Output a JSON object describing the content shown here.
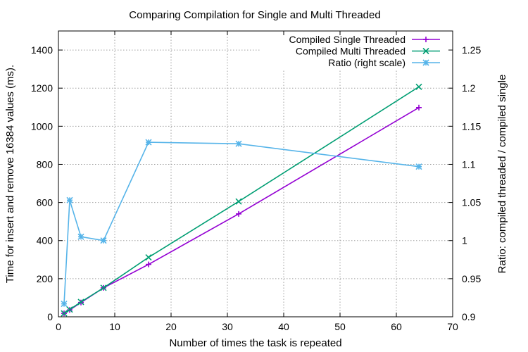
{
  "chart_data": {
    "type": "line",
    "title": "Comparing Compilation for Single and Multi Threaded",
    "xlabel": "Number of times the task is repeated",
    "ylabel": "Time for insert and remove 16384 values (ms).",
    "y2label": "Ratio: compiled threaded / compiled single",
    "xlim": [
      0,
      70
    ],
    "ylim": [
      0,
      1500
    ],
    "y2lim": [
      0.9,
      1.275
    ],
    "xticks": [
      "0",
      "10",
      "20",
      "30",
      "40",
      "50",
      "60",
      "70"
    ],
    "yticks": [
      "0",
      "200",
      "400",
      "600",
      "800",
      "1000",
      "1200",
      "1400"
    ],
    "y2ticks": [
      "0.9",
      "0.95",
      "1",
      "1.05",
      "1.1",
      "1.15",
      "1.2",
      "1.25"
    ],
    "grid": true,
    "legend_position": "top-right",
    "series": [
      {
        "name": "Compiled Single Threaded",
        "axis": "left",
        "color": "#9400d3",
        "marker": "plus",
        "points": [
          [
            1,
            18
          ],
          [
            2,
            36
          ],
          [
            4,
            75
          ],
          [
            8,
            152
          ],
          [
            16,
            275
          ],
          [
            32,
            540
          ],
          [
            64,
            1098
          ]
        ]
      },
      {
        "name": "Compiled Multi Threaded",
        "axis": "left",
        "color": "#009e73",
        "marker": "cross",
        "points": [
          [
            1,
            18
          ],
          [
            2,
            38
          ],
          [
            4,
            78
          ],
          [
            8,
            152
          ],
          [
            16,
            312
          ],
          [
            32,
            605
          ],
          [
            64,
            1207
          ]
        ]
      },
      {
        "name": "Ratio (right scale)",
        "axis": "right",
        "color": "#56b4e9",
        "marker": "star",
        "points": [
          [
            1,
            0.917
          ],
          [
            2,
            1.053
          ],
          [
            4,
            1.005
          ],
          [
            8,
            1.0
          ],
          [
            16,
            1.129
          ],
          [
            32,
            1.127
          ],
          [
            64,
            1.097
          ]
        ]
      }
    ]
  }
}
